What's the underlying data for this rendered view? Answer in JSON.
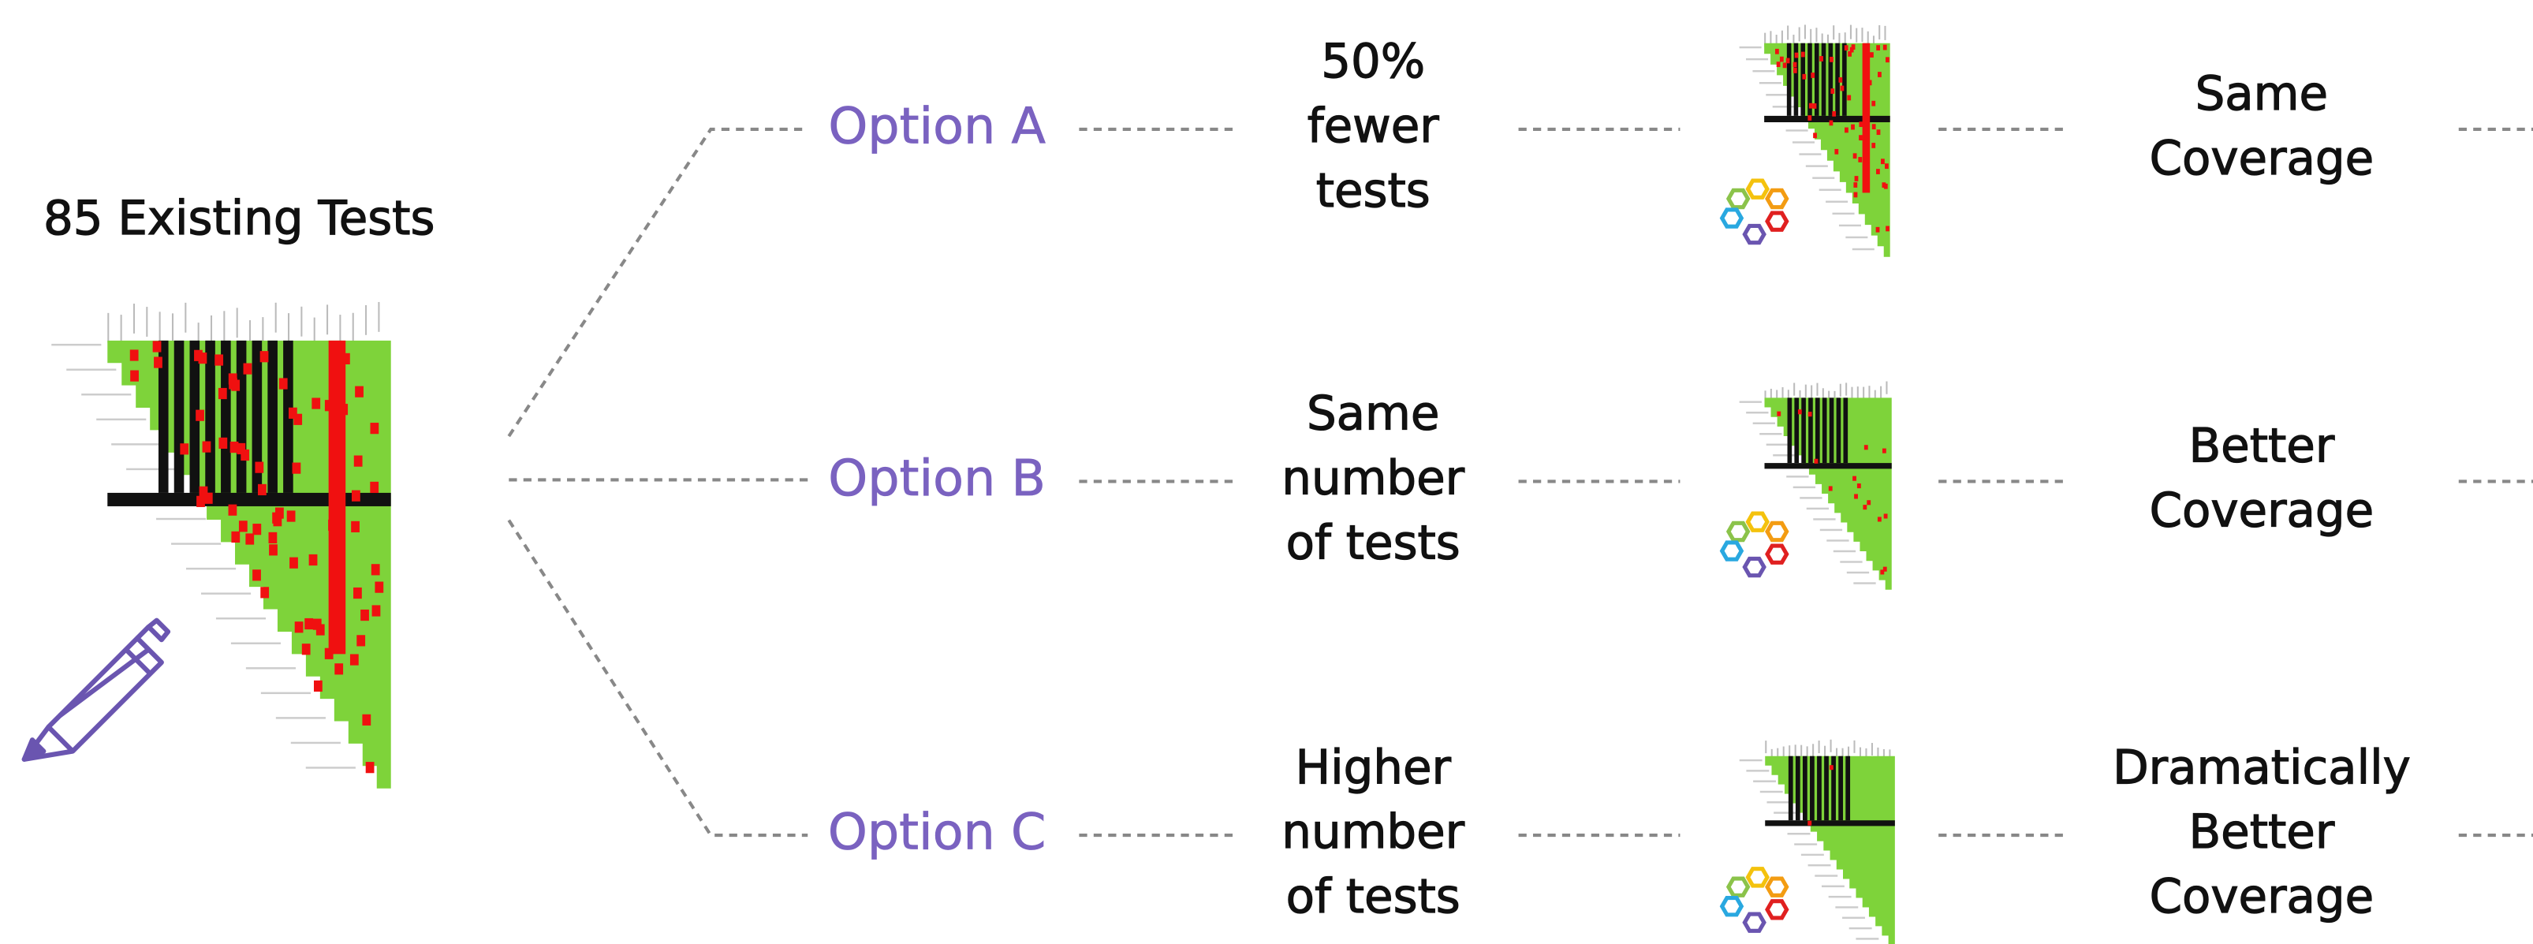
{
  "title": "85 Existing Tests",
  "options": [
    {
      "label": "Option A",
      "description": [
        "50%",
        "fewer",
        "tests"
      ],
      "outcome": [
        "Same",
        "Coverage"
      ]
    },
    {
      "label": "Option B",
      "description": [
        "Same",
        "number",
        "of tests"
      ],
      "outcome": [
        "Better",
        "Coverage"
      ]
    },
    {
      "label": "Option C",
      "description": [
        "Higher",
        "number",
        "of tests"
      ],
      "outcome": [
        "Dramatically",
        "Better",
        "Coverage"
      ]
    }
  ]
}
